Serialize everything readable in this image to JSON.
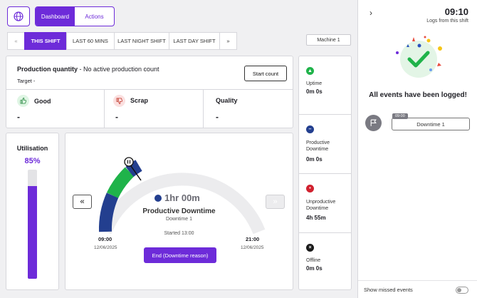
{
  "header": {
    "globe_icon": "globe-icon",
    "nav": [
      {
        "label": "Dashboard",
        "active": true
      },
      {
        "label": "Actions",
        "active": false
      }
    ]
  },
  "tabs": {
    "prev": "«",
    "items": [
      "THIS SHIFT",
      "LAST 60 MINS",
      "LAST NIGHT SHIFT",
      "LAST DAY SHIFT"
    ],
    "next": "»"
  },
  "machine": "Machine 1",
  "production": {
    "title": "Production quantity",
    "subtitle": " - No active production count",
    "target": "Target  -",
    "start_button": "Start count"
  },
  "metrics": [
    {
      "label": "Good",
      "value": "-",
      "icon": "thumbs-up-icon",
      "color": "#dff5e4"
    },
    {
      "label": "Scrap",
      "value": "-",
      "icon": "thumbs-down-icon",
      "color": "#fbe0e0"
    },
    {
      "label": "Quality",
      "value": "-"
    }
  ],
  "utilisation": {
    "title": "Utilisation",
    "value": "85%",
    "fraction": 0.85
  },
  "gauge": {
    "duration": "1hr 00m",
    "state": "Productive Downtime",
    "reason": "Downtime 1",
    "started": "Started 13:00",
    "start_time": "09:00",
    "start_date": "12/06/2025",
    "end_time": "21:00",
    "end_date": "12/06/2025",
    "end_button": "End (Downtime reason)",
    "prev": "«",
    "next": "»"
  },
  "statuses": [
    {
      "label": "Uptime",
      "value": "0m 0s",
      "color": "#1fb34a",
      "glyph": "▲"
    },
    {
      "label": "Productive\nDowntime",
      "value": "0m 0s",
      "color": "#233f8f",
      "glyph": "–"
    },
    {
      "label": "Unproductive\nDowntime",
      "value": "4h 55m",
      "color": "#d1212f",
      "glyph": "•"
    },
    {
      "label": "Offline",
      "value": "0m 0s",
      "color": "#1a1a1a",
      "glyph": "×"
    }
  ],
  "log": {
    "time": "09:10",
    "subtitle": "Logs from this shift",
    "message": "All events have been logged!",
    "event_time": "09:00",
    "event_label": "Downtime 1",
    "show_missed": "Show missed events"
  },
  "colors": {
    "accent": "#6d2bd9",
    "uptime": "#1fb34a",
    "productive": "#233f8f"
  }
}
